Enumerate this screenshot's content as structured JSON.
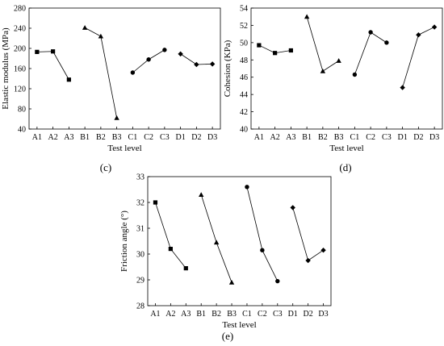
{
  "panel_labels": [
    "(c)",
    "(d)",
    "(e)"
  ],
  "chart_data": [
    {
      "type": "line",
      "title": "",
      "xlabel": "Test  level",
      "ylabel": "Elastic modulus (MPa)",
      "categories": [
        "A1",
        "A2",
        "A3",
        "B1",
        "B2",
        "B3",
        "C1",
        "C2",
        "C3",
        "D1",
        "D2",
        "D3"
      ],
      "ylim": [
        40,
        280
      ],
      "yticks": [
        40,
        80,
        120,
        160,
        200,
        240,
        280
      ],
      "groups": [
        {
          "marker": "square",
          "values": [
            193,
            194,
            138
          ]
        },
        {
          "marker": "triangle",
          "values": [
            241,
            224,
            62
          ]
        },
        {
          "marker": "circle",
          "values": [
            152,
            178,
            197
          ]
        },
        {
          "marker": "diamond",
          "values": [
            189,
            168,
            169
          ]
        }
      ]
    },
    {
      "type": "line",
      "title": "",
      "xlabel": "Test  level",
      "ylabel": "Cohesion (KPa)",
      "categories": [
        "A1",
        "A2",
        "A3",
        "B1",
        "B2",
        "B3",
        "C1",
        "C2",
        "C3",
        "D1",
        "D2",
        "D3"
      ],
      "ylim": [
        40,
        54
      ],
      "yticks": [
        40,
        42,
        44,
        46,
        48,
        50,
        52,
        54
      ],
      "groups": [
        {
          "marker": "square",
          "values": [
            49.7,
            48.8,
            49.1
          ]
        },
        {
          "marker": "triangle",
          "values": [
            53.0,
            46.7,
            47.9
          ]
        },
        {
          "marker": "circle",
          "values": [
            46.3,
            51.2,
            50.0
          ]
        },
        {
          "marker": "diamond",
          "values": [
            44.8,
            50.9,
            51.8
          ]
        }
      ]
    },
    {
      "type": "line",
      "title": "",
      "xlabel": "Test  level",
      "ylabel": "Friction angle (°)",
      "categories": [
        "A1",
        "A2",
        "A3",
        "B1",
        "B2",
        "B3",
        "C1",
        "C2",
        "C3",
        "D1",
        "D2",
        "D3"
      ],
      "ylim": [
        28,
        33
      ],
      "yticks": [
        28,
        29,
        30,
        31,
        32,
        33
      ],
      "groups": [
        {
          "marker": "square",
          "values": [
            32.0,
            30.2,
            29.45
          ]
        },
        {
          "marker": "triangle",
          "values": [
            32.3,
            30.45,
            28.9
          ]
        },
        {
          "marker": "circle",
          "values": [
            32.6,
            30.15,
            28.95
          ]
        },
        {
          "marker": "diamond",
          "values": [
            31.8,
            29.75,
            30.15
          ]
        }
      ]
    }
  ]
}
